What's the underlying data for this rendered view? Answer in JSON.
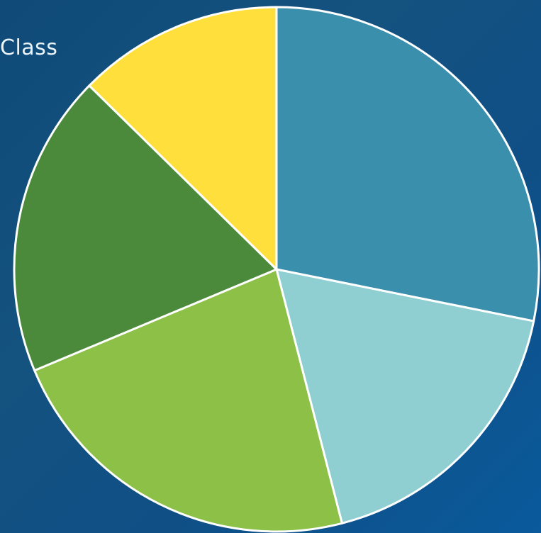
{
  "chart_data": {
    "type": "pie",
    "title_fragment": "Class",
    "slices": [
      {
        "value": 30.5,
        "color": "#3a8fac"
      },
      {
        "value": 19.3,
        "color": "#8fcfd2"
      },
      {
        "value": 24.6,
        "color": "#8cc047"
      },
      {
        "value": 20.2,
        "color": "#4b8a3b"
      },
      {
        "value": 13.7,
        "color": "#ffdf3c"
      }
    ],
    "start_angle_deg": 0,
    "direction": "clockwise",
    "slice_border_color": "#ffffff"
  }
}
